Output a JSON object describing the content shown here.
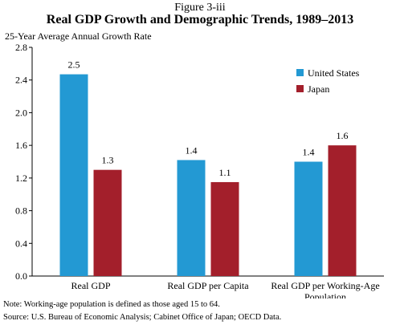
{
  "figure_label": "Figure 3-iii",
  "notes": [
    "Note: Working-age population is defined as those aged 15 to 64.",
    "Source: U.S. Bureau of Economic Analysis; Cabinet Office of Japan; OECD Data."
  ],
  "chart_data": {
    "type": "bar",
    "title": "Real GDP Growth and Demographic Trends, 1989–2013",
    "ylabel": "25-Year Average Annual Growth Rate",
    "xlabel": "",
    "categories": [
      [
        "Real GDP"
      ],
      [
        "Real GDP per Capita"
      ],
      [
        "Real GDP per Working-Age",
        "Population"
      ]
    ],
    "series": [
      {
        "name": "United States",
        "values": [
          2.47,
          1.42,
          1.4
        ],
        "labels": [
          "2.5",
          "1.4",
          "1.4"
        ],
        "color": "#2399d3"
      },
      {
        "name": "Japan",
        "values": [
          1.3,
          1.15,
          1.6
        ],
        "labels": [
          "1.3",
          "1.1",
          "1.6"
        ],
        "color": "#a31f2b"
      }
    ],
    "ylim": [
      0,
      2.8
    ],
    "yticks": [
      0.0,
      0.4,
      0.8,
      1.2,
      1.6,
      2.0,
      2.4,
      2.8
    ],
    "ytick_labels": [
      "0.0",
      "0.4",
      "0.8",
      "1.2",
      "1.6",
      "2.0",
      "2.4",
      "2.8"
    ],
    "grid": false,
    "legend_position": "top-right"
  }
}
